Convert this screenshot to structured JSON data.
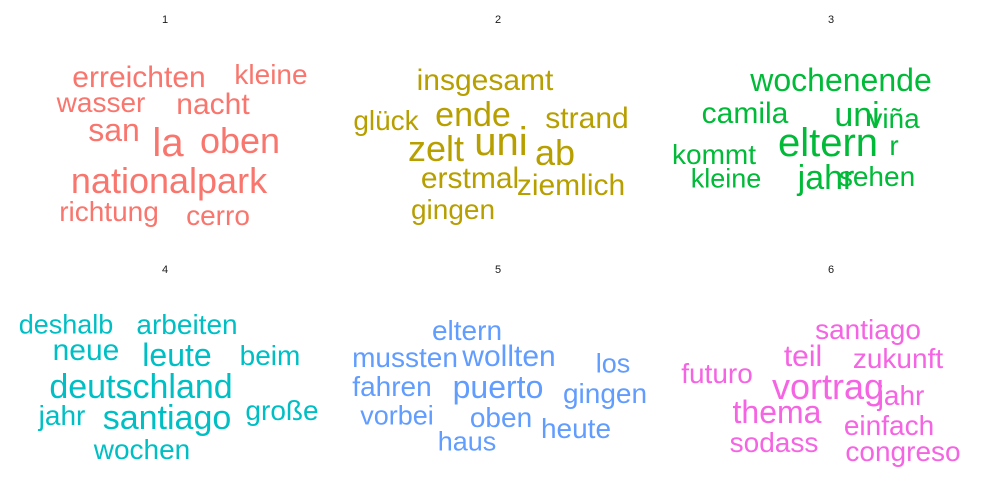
{
  "chart_data": {
    "type": "wordcloud",
    "panels": [
      {
        "label": "1",
        "color": "#F8766D",
        "words": [
          {
            "text": "la",
            "weight": 40
          },
          {
            "text": "san",
            "weight": 32
          },
          {
            "text": "oben",
            "weight": 36
          },
          {
            "text": "nationalpark",
            "weight": 36
          },
          {
            "text": "erreichten",
            "weight": 30
          },
          {
            "text": "nacht",
            "weight": 30
          },
          {
            "text": "wasser",
            "weight": 28
          },
          {
            "text": "kleine",
            "weight": 28
          },
          {
            "text": "richtung",
            "weight": 28
          },
          {
            "text": "cerro",
            "weight": 28
          }
        ]
      },
      {
        "label": "2",
        "color": "#B79F00",
        "words": [
          {
            "text": "uni",
            "weight": 40
          },
          {
            "text": "zelt",
            "weight": 36
          },
          {
            "text": "ab",
            "weight": 36
          },
          {
            "text": "ende",
            "weight": 34
          },
          {
            "text": "insgesamt",
            "weight": 30
          },
          {
            "text": "strand",
            "weight": 30
          },
          {
            "text": "glück",
            "weight": 28
          },
          {
            "text": "erstmal",
            "weight": 30
          },
          {
            "text": "ziemlich",
            "weight": 30
          },
          {
            "text": "gingen",
            "weight": 28
          }
        ]
      },
      {
        "label": "3",
        "color": "#00BA38",
        "words": [
          {
            "text": "eltern",
            "weight": 40
          },
          {
            "text": "wochenende",
            "weight": 32
          },
          {
            "text": "uni",
            "weight": 34
          },
          {
            "text": "jahr",
            "weight": 34
          },
          {
            "text": "camila",
            "weight": 30
          },
          {
            "text": "viña",
            "weight": 28
          },
          {
            "text": "kommt",
            "weight": 28
          },
          {
            "text": "r",
            "weight": 28
          },
          {
            "text": "kleine",
            "weight": 27
          },
          {
            "text": "sehen",
            "weight": 28
          }
        ]
      },
      {
        "label": "4",
        "color": "#00BFC4",
        "words": [
          {
            "text": "deutschland",
            "weight": 34
          },
          {
            "text": "santiago",
            "weight": 34
          },
          {
            "text": "leute",
            "weight": 32
          },
          {
            "text": "neue",
            "weight": 30
          },
          {
            "text": "arbeiten",
            "weight": 28
          },
          {
            "text": "deshalb",
            "weight": 27
          },
          {
            "text": "beim",
            "weight": 28
          },
          {
            "text": "jahr",
            "weight": 28
          },
          {
            "text": "große",
            "weight": 28
          },
          {
            "text": "wochen",
            "weight": 28
          }
        ]
      },
      {
        "label": "5",
        "color": "#619CFF",
        "words": [
          {
            "text": "puerto",
            "weight": 32
          },
          {
            "text": "wollten",
            "weight": 30
          },
          {
            "text": "mussten",
            "weight": 28
          },
          {
            "text": "eltern",
            "weight": 28
          },
          {
            "text": "fahren",
            "weight": 28
          },
          {
            "text": "gingen",
            "weight": 28
          },
          {
            "text": "los",
            "weight": 27
          },
          {
            "text": "vorbei",
            "weight": 27
          },
          {
            "text": "oben",
            "weight": 28
          },
          {
            "text": "heute",
            "weight": 28
          },
          {
            "text": "haus",
            "weight": 27
          }
        ]
      },
      {
        "label": "6",
        "color": "#F564E3",
        "words": [
          {
            "text": "vortrag",
            "weight": 36
          },
          {
            "text": "thema",
            "weight": 32
          },
          {
            "text": "teil",
            "weight": 30
          },
          {
            "text": "zukunft",
            "weight": 28
          },
          {
            "text": "santiago",
            "weight": 28
          },
          {
            "text": "futuro",
            "weight": 28
          },
          {
            "text": "jahr",
            "weight": 28
          },
          {
            "text": "einfach",
            "weight": 28
          },
          {
            "text": "sodass",
            "weight": 28
          },
          {
            "text": "congreso",
            "weight": 28
          }
        ]
      }
    ]
  }
}
